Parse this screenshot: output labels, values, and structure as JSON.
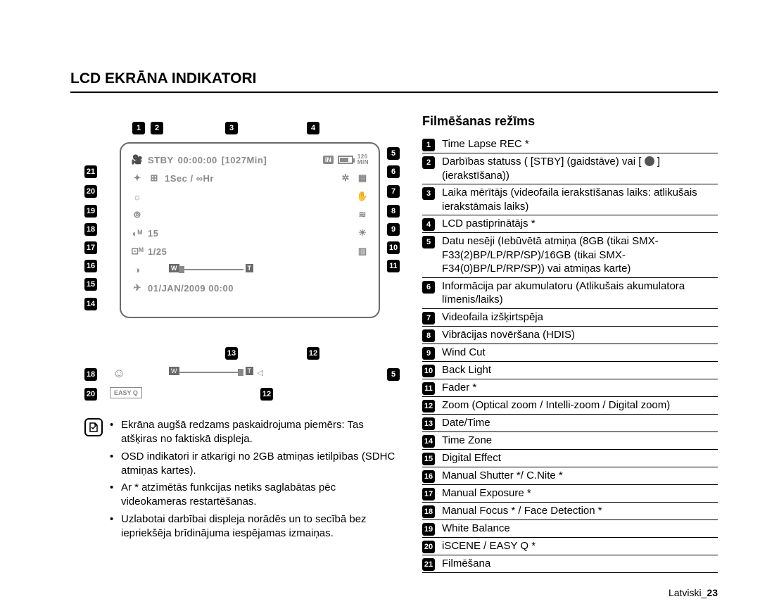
{
  "heading": "LCD EKRĀNA INDIKATORI",
  "lcd": {
    "stby": "STBY",
    "time": "00:00:00",
    "remain": "[1027Min]",
    "in": "IN",
    "interval": "1Sec / ∞Hr",
    "sm15": "15",
    "sm125": "1/25",
    "date": "01/JAN/2009 00:00",
    "w": "W",
    "t": "T",
    "min120": "120\nMIN"
  },
  "mini": {
    "easyq": "EASY Q"
  },
  "callout_nums": [
    "1",
    "2",
    "3",
    "4",
    "5",
    "6",
    "7",
    "8",
    "9",
    "10",
    "11",
    "12",
    "13",
    "14",
    "15",
    "16",
    "17",
    "18",
    "19",
    "20",
    "21"
  ],
  "notes": [
    "Ekrāna augšā redzams paskaidrojuma piemērs: Tas atšķiras no faktiskā displeja.",
    "OSD indikatori ir atkarīgi no 2GB atmiņas ietilpības (SDHC atmiņas kartes).",
    "Ar * atzīmētās funkcijas netiks saglabātas pēc videokameras restartēšanas.",
    "Uzlabotai darbībai displeja norādēs un to secībā bez iepriekšēja brīdinājuma iespējamas izmaiņas."
  ],
  "right": {
    "title": "Filmēšanas režīms",
    "items": [
      {
        "n": "1",
        "t": "Time Lapse REC *"
      },
      {
        "n": "2",
        "t": "Darbības statuss ( [STBY] (gaidstāve) vai [ ● ] (ierakstīšana))"
      },
      {
        "n": "3",
        "t": "Laika mērītājs (videofaila ierakstīšanas laiks: atlikušais ierakstāmais laiks)"
      },
      {
        "n": "4",
        "t": "LCD pastiprinātājs *"
      },
      {
        "n": "5",
        "t": "Datu nesēji (Iebūvētā atmiņa (8GB (tikai SMX-F33(2)BP/LP/RP/SP)/16GB (tikai SMX-F34(0)BP/LP/RP/SP)) vai atmiņas karte)"
      },
      {
        "n": "6",
        "t": "Informācija par akumulatoru (Atlikušais akumulatora līmenis/laiks)"
      },
      {
        "n": "7",
        "t": "Videofaila izšķirtspēja"
      },
      {
        "n": "8",
        "t": "Vibrācijas novēršana (HDIS)"
      },
      {
        "n": "9",
        "t": "Wind Cut"
      },
      {
        "n": "10",
        "t": "Back Light"
      },
      {
        "n": "11",
        "t": "Fader *"
      },
      {
        "n": "12",
        "t": "Zoom (Optical zoom / Intelli-zoom / Digital zoom)"
      },
      {
        "n": "13",
        "t": "Date/Time"
      },
      {
        "n": "14",
        "t": "Time Zone"
      },
      {
        "n": "15",
        "t": "Digital Effect"
      },
      {
        "n": "16",
        "t": "Manual Shutter */ C.Nite *"
      },
      {
        "n": "17",
        "t": "Manual Exposure *"
      },
      {
        "n": "18",
        "t": "Manual Focus * / Face Detection *"
      },
      {
        "n": "19",
        "t": "White Balance"
      },
      {
        "n": "20",
        "t": "iSCENE / EASY Q *"
      },
      {
        "n": "21",
        "t": "Filmēšana"
      }
    ]
  },
  "footer": {
    "lang": "Latviski_",
    "page": "23"
  }
}
